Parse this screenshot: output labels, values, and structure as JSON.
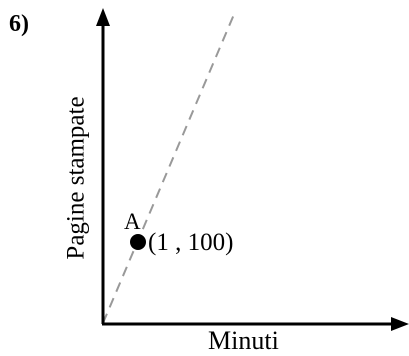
{
  "problem": {
    "number": "6)"
  },
  "axes": {
    "xlabel": "Minuti",
    "ylabel": "Pagine stampate"
  },
  "point": {
    "name": "A",
    "coords_label": "(1 , 100)",
    "x": 1,
    "y": 100
  },
  "line": {
    "style": "dashed",
    "color": "#999999"
  },
  "colors": {
    "axis": "#000000",
    "point": "#000000"
  }
}
